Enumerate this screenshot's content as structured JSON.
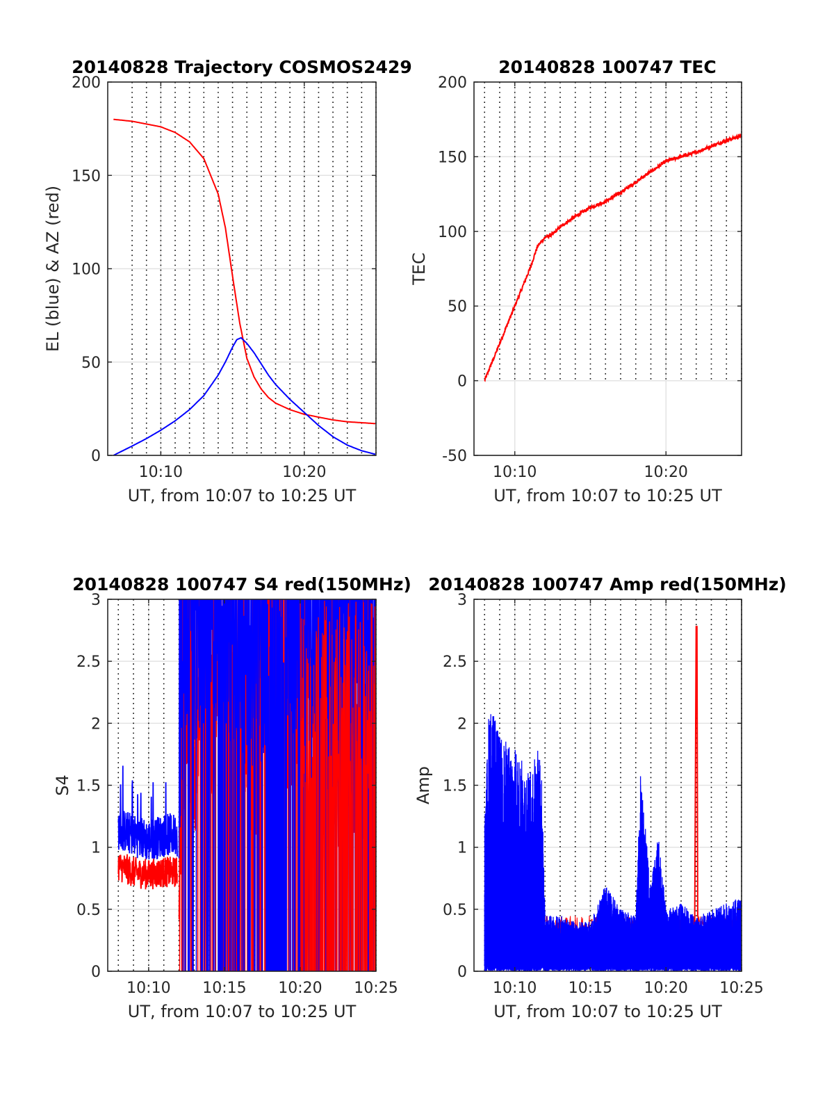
{
  "figure": {
    "colors": {
      "red": "#ff0000",
      "blue": "#0000ff",
      "axis": "#262626",
      "grid": "#e3e3e3"
    }
  },
  "chart_data": [
    {
      "id": "traj",
      "type": "line",
      "title": "20140828 Trajectory COSMOS2429",
      "xlabel": "UT, from 10:07 to 10:25 UT",
      "ylabel": "EL (blue) & AZ (red)",
      "xlim": [
        10.07,
        10.25
      ],
      "xunit": "minutes past 10:00",
      "ylim": [
        0,
        200
      ],
      "xticks": [
        10,
        20
      ],
      "xticklabels": [
        "10:10",
        "10:20"
      ],
      "yticks": [
        0,
        50,
        100,
        150,
        200
      ],
      "yticklabels": [
        "0",
        "50",
        "100",
        "150",
        "200"
      ],
      "grid": true,
      "series": [
        {
          "color": "#ff0000",
          "x": [
            6.7,
            8,
            9,
            10,
            11,
            12,
            13,
            14,
            14.5,
            15,
            15.5,
            16,
            16.5,
            17,
            17.5,
            18,
            19,
            20,
            21,
            22,
            23,
            24,
            25
          ],
          "y": [
            180,
            179,
            177.5,
            176,
            173,
            168,
            159,
            140,
            122,
            96,
            71,
            52,
            42,
            35.5,
            31,
            28,
            24.5,
            22,
            20.5,
            19,
            18,
            17.5,
            17
          ]
        },
        {
          "color": "#0000ff",
          "x": [
            6.7,
            8,
            9,
            10,
            11,
            12,
            13,
            14,
            14.5,
            15,
            15.3,
            15.6,
            16,
            16.5,
            17,
            17.5,
            18,
            19,
            20,
            21,
            22,
            23,
            24,
            25
          ],
          "y": [
            0,
            5,
            9,
            13.5,
            18.5,
            24.5,
            32,
            43,
            50,
            58,
            62,
            63,
            60,
            55,
            49,
            43,
            38,
            30,
            23,
            16,
            10,
            5.5,
            2.5,
            0.5
          ]
        }
      ]
    },
    {
      "id": "tec",
      "type": "line",
      "title": "20140828 100747 TEC",
      "xlabel": "UT, from 10:07 to 10:25 UT",
      "ylabel": "TEC",
      "xlim": [
        10.07,
        10.25
      ],
      "xunit": "minutes past 10:00",
      "ylim": [
        -50,
        200
      ],
      "xticks": [
        10,
        20
      ],
      "xticklabels": [
        "10:10",
        "10:20"
      ],
      "yticks": [
        -50,
        0,
        50,
        100,
        150,
        200
      ],
      "yticklabels": [
        "-50",
        "0",
        "50",
        "100",
        "150",
        "200"
      ],
      "grid": true,
      "series": [
        {
          "color": "#ff0000",
          "x": [
            8,
            9,
            10,
            11,
            11.5,
            12,
            12.5,
            13,
            14,
            15,
            16,
            17,
            18,
            19,
            20,
            21,
            22,
            23,
            24,
            25
          ],
          "y": [
            0,
            25,
            50,
            75,
            90,
            96,
            98,
            103,
            110,
            116,
            120,
            126,
            133,
            140,
            147,
            150,
            153,
            157,
            161,
            164
          ]
        }
      ]
    },
    {
      "id": "s4",
      "type": "line",
      "title": "20140828 100747 S4 red(150MHz)",
      "xlabel": "UT, from 10:07 to 10:25 UT",
      "ylabel": "S4",
      "xlim": [
        10.07,
        10.25
      ],
      "xunit": "minutes past 10:00",
      "ylim": [
        0,
        3
      ],
      "xticks": [
        10,
        15,
        20,
        25
      ],
      "xticklabels": [
        "10:10",
        "10:15",
        "10:20",
        "10:25"
      ],
      "yticks": [
        0,
        0.5,
        1,
        1.5,
        2,
        2.5,
        3
      ],
      "yticklabels": [
        "0",
        "0.5",
        "1",
        "1.5",
        "2",
        "2.5",
        "3"
      ],
      "grid": true,
      "series": [
        {
          "color": "#ff0000",
          "x": [
            8,
            9,
            10,
            11,
            11.9,
            12.5,
            13,
            14,
            15,
            16,
            17,
            18,
            19,
            20,
            21,
            22,
            23,
            24,
            25
          ],
          "y": [
            0.85,
            0.8,
            0.78,
            0.8,
            0.8,
            2.2,
            1.8,
            2.1,
            1.9,
            2.0,
            1.7,
            2.3,
            2.0,
            2.4,
            1.8,
            1.6,
            1.7,
            1.6,
            2.0
          ]
        },
        {
          "color": "#0000ff",
          "x": [
            8,
            9,
            10,
            11,
            11.9,
            12.5,
            13,
            14,
            15,
            16,
            17,
            18,
            19,
            20,
            21,
            22,
            23,
            24,
            25
          ],
          "y": [
            1.15,
            1.1,
            1.05,
            1.1,
            1.1,
            2.6,
            2.4,
            2.5,
            2.4,
            2.3,
            2.2,
            2.4,
            2.3,
            2.5,
            2.4,
            2.3,
            2.3,
            2.3,
            2.3
          ]
        }
      ]
    },
    {
      "id": "amp",
      "type": "line",
      "title": "20140828 100747 Amp red(150MHz)",
      "xlabel": "UT, from 10:07 to 10:25 UT",
      "ylabel": "Amp",
      "xlim": [
        10.07,
        10.25
      ],
      "xunit": "minutes past 10:00",
      "ylim": [
        0,
        3
      ],
      "xticks": [
        10,
        15,
        20,
        25
      ],
      "xticklabels": [
        "10:10",
        "10:15",
        "10:20",
        "10:25"
      ],
      "yticks": [
        0,
        0.5,
        1,
        1.5,
        2,
        2.5,
        3
      ],
      "yticklabels": [
        "0",
        "0.5",
        "1",
        "1.5",
        "2",
        "2.5",
        "3"
      ],
      "grid": true,
      "series": [
        {
          "color": "#ff0000",
          "x": [
            21.9,
            22.0,
            22.05,
            22.1,
            22.2
          ],
          "y": [
            0.4,
            2.78,
            2.78,
            0.45,
            0.4
          ]
        },
        {
          "color": "#0000ff",
          "x": [
            8,
            8.3,
            9,
            10,
            11,
            11.7,
            12,
            13,
            14,
            15,
            16,
            17,
            18,
            18.3,
            19,
            19.5,
            20,
            21,
            22,
            23,
            24,
            25
          ],
          "y": [
            1.2,
            2.2,
            1.9,
            1.8,
            1.6,
            1.9,
            0.45,
            0.45,
            0.4,
            0.4,
            0.7,
            0.5,
            0.45,
            1.6,
            0.7,
            1.1,
            0.5,
            0.55,
            0.45,
            0.5,
            0.55,
            0.6
          ]
        }
      ]
    }
  ]
}
